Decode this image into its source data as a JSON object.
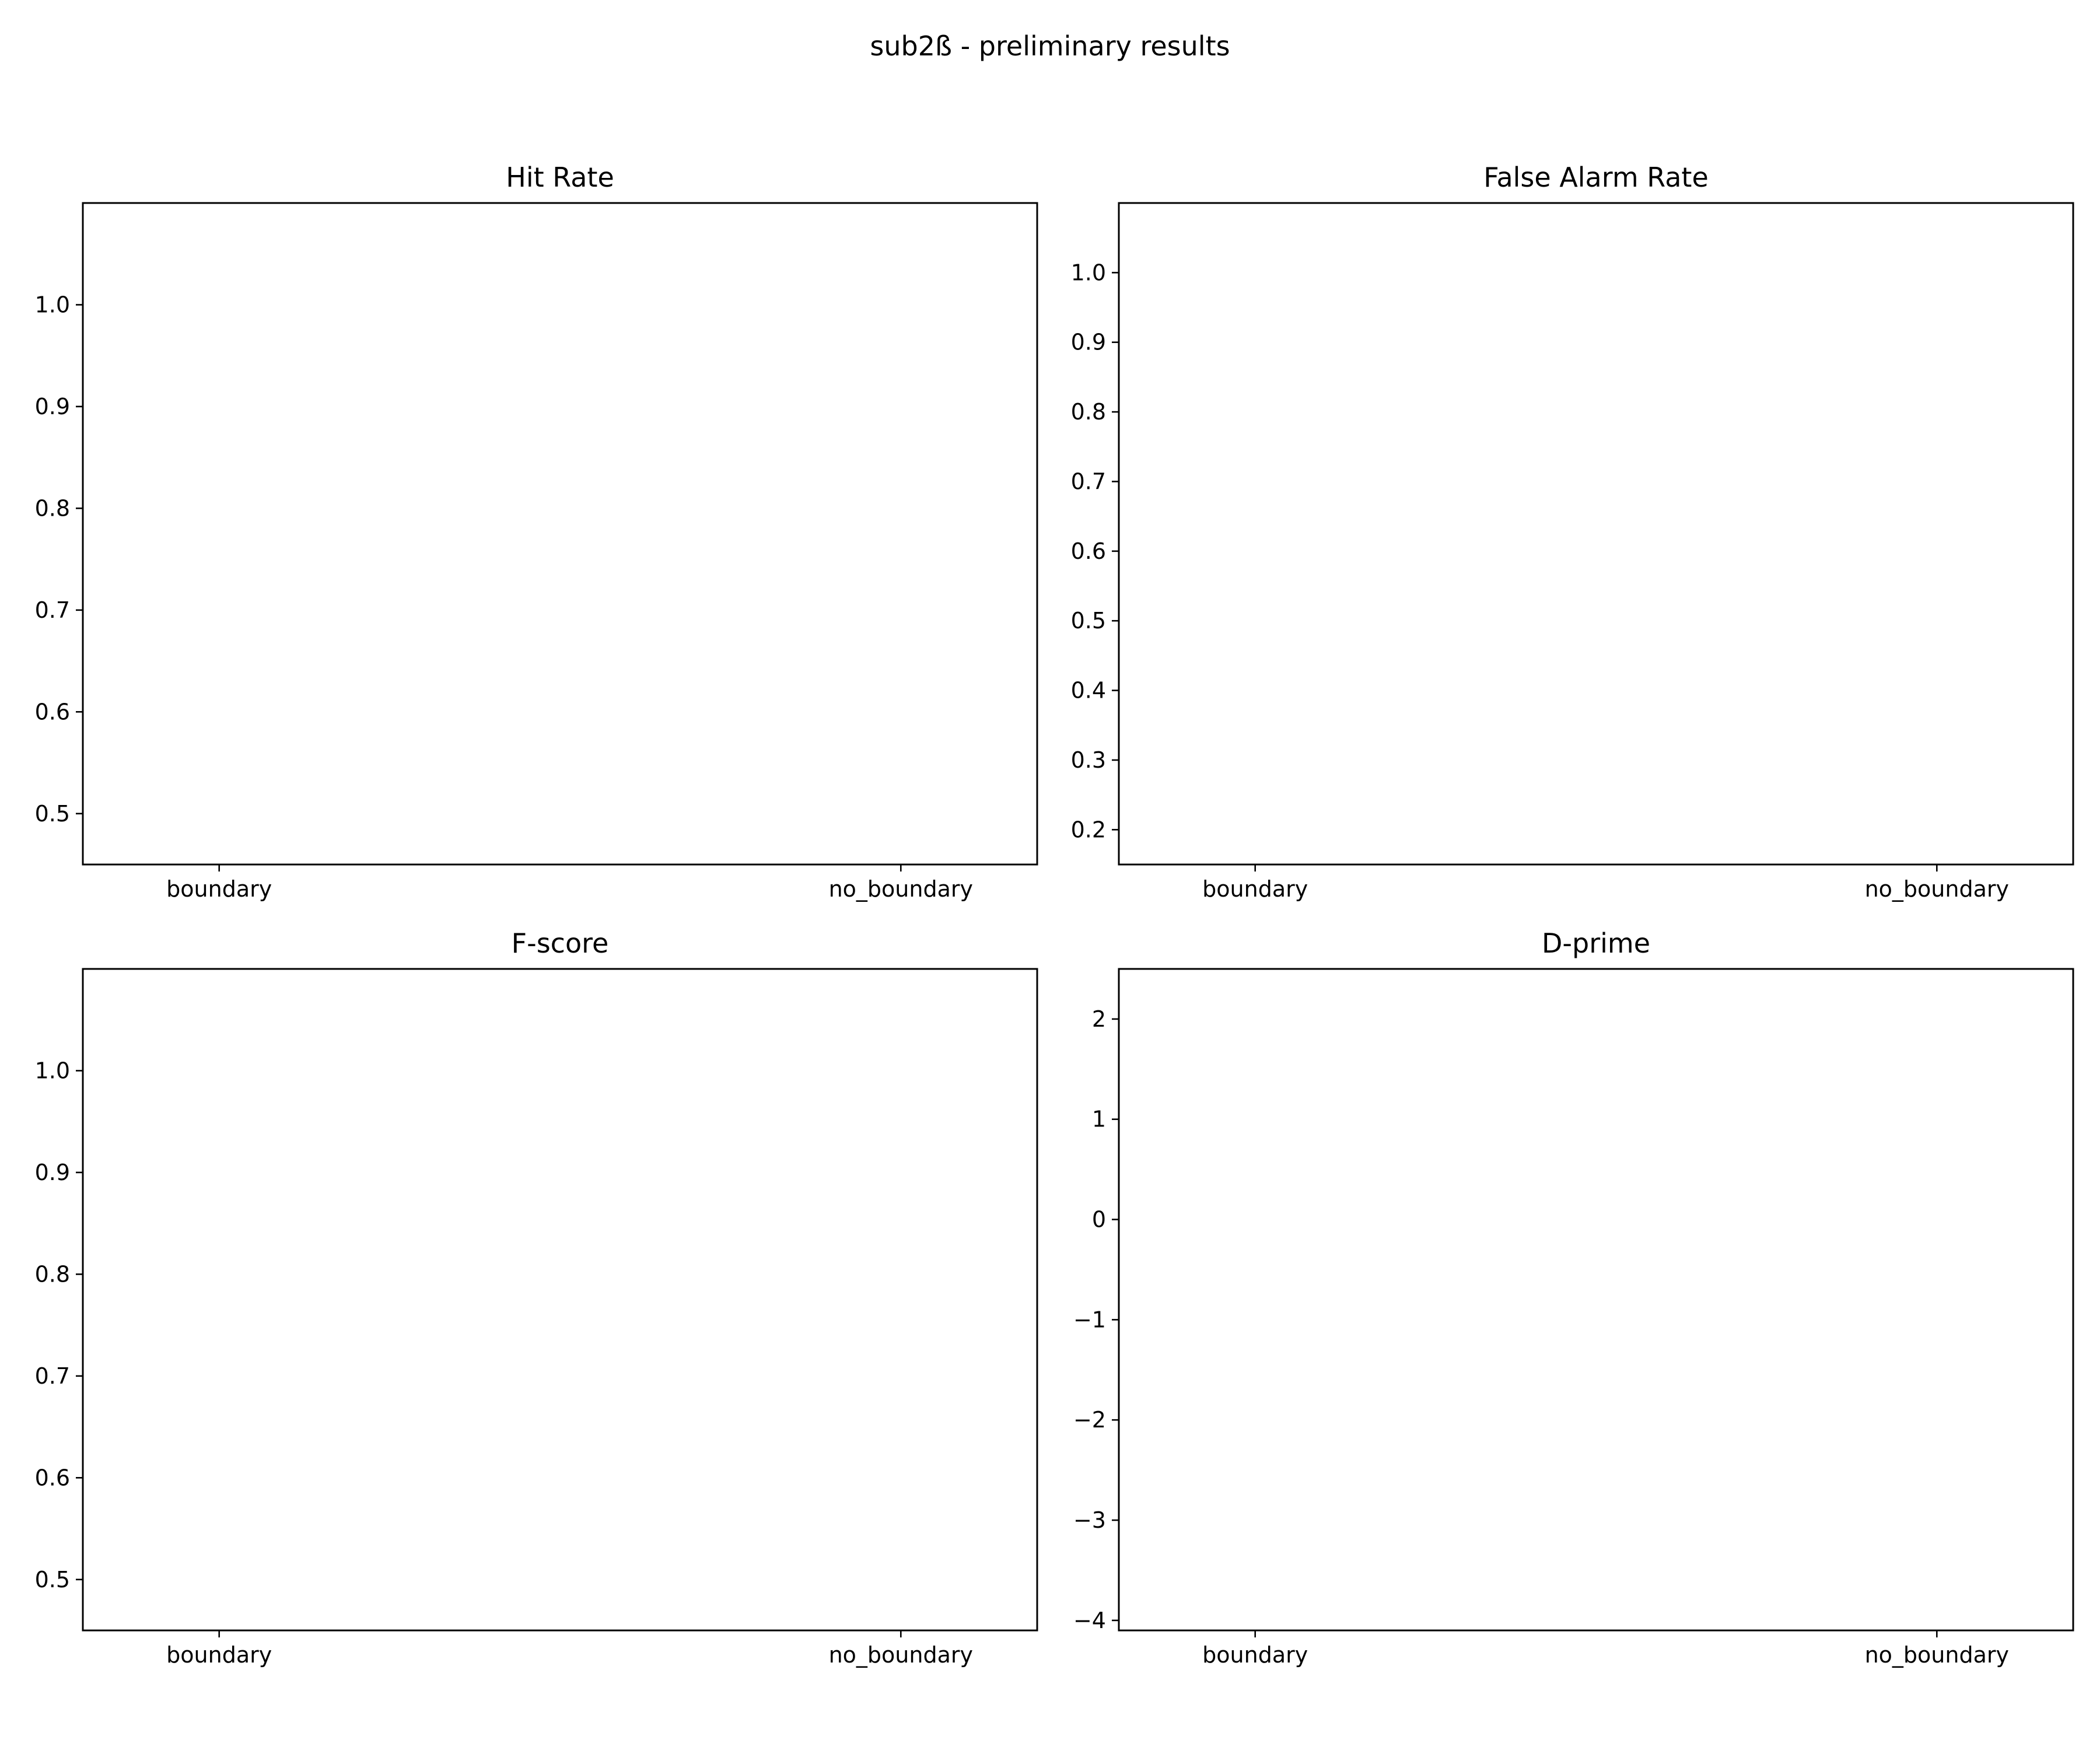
{
  "figure": {
    "suptitle": "sub2ß - preliminary results"
  },
  "chart_data": [
    {
      "type": "scatter",
      "title": "Hit Rate",
      "xlabel": "",
      "ylabel": "",
      "categories": [
        "boundary",
        "no_boundary"
      ],
      "series": [],
      "ylim": [
        0.45,
        1.1
      ],
      "yticks": [
        0.5,
        0.6,
        0.7,
        0.8,
        0.9,
        1.0
      ],
      "ytick_labels": [
        "0.5",
        "0.6",
        "0.7",
        "0.8",
        "0.9",
        "1.0"
      ],
      "grid": false,
      "legend": "none"
    },
    {
      "type": "scatter",
      "title": "False Alarm Rate",
      "xlabel": "",
      "ylabel": "",
      "categories": [
        "boundary",
        "no_boundary"
      ],
      "series": [],
      "ylim": [
        0.15,
        1.1
      ],
      "yticks": [
        0.2,
        0.3,
        0.4,
        0.5,
        0.6,
        0.7,
        0.8,
        0.9,
        1.0
      ],
      "ytick_labels": [
        "0.2",
        "0.3",
        "0.4",
        "0.5",
        "0.6",
        "0.7",
        "0.8",
        "0.9",
        "1.0"
      ],
      "grid": false,
      "legend": "none"
    },
    {
      "type": "scatter",
      "title": "F-score",
      "xlabel": "",
      "ylabel": "",
      "categories": [
        "boundary",
        "no_boundary"
      ],
      "series": [],
      "ylim": [
        0.45,
        1.1
      ],
      "yticks": [
        0.5,
        0.6,
        0.7,
        0.8,
        0.9,
        1.0
      ],
      "ytick_labels": [
        "0.5",
        "0.6",
        "0.7",
        "0.8",
        "0.9",
        "1.0"
      ],
      "grid": false,
      "legend": "none"
    },
    {
      "type": "scatter",
      "title": "D-prime",
      "xlabel": "",
      "ylabel": "",
      "categories": [
        "boundary",
        "no_boundary"
      ],
      "series": [],
      "ylim": [
        -4.1,
        2.5
      ],
      "yticks": [
        -4,
        -3,
        -2,
        -1,
        0,
        1,
        2
      ],
      "ytick_labels": [
        "−4",
        "−3",
        "−2",
        "−1",
        "0",
        "1",
        "2"
      ],
      "grid": false,
      "legend": "none"
    }
  ]
}
